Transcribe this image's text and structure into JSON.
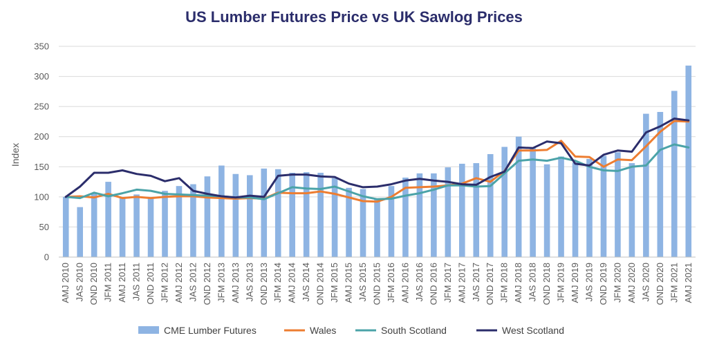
{
  "chart_data": {
    "type": "bar+line",
    "title": "US Lumber Futures Price vs UK Sawlog Prices",
    "xlabel": "",
    "ylabel": "Index",
    "ylim": [
      0,
      350
    ],
    "yticks": [
      0,
      50,
      100,
      150,
      200,
      250,
      300,
      350
    ],
    "grid": true,
    "legend_position": "bottom",
    "categories": [
      "AMJ 2010",
      "JAS 2010",
      "OND 2010",
      "JFM 2011",
      "AMJ 2011",
      "JAS 2011",
      "OND 2011",
      "JFM 2012",
      "AMJ 2012",
      "JAS 2012",
      "OND 2012",
      "JFM 2013",
      "AMJ 2013",
      "JAS 2013",
      "OND 2013",
      "JFM 2014",
      "AMJ 2014",
      "JAS 2014",
      "OND 2014",
      "JFM 2015",
      "AMJ 2015",
      "JAS 2015",
      "OND 2015",
      "JFM 2016",
      "AMJ 2016",
      "JAS 2016",
      "OND 2016",
      "JFM 2017",
      "AMJ 2017",
      "JAS 2017",
      "OND 2017",
      "JFM 2018",
      "AMJ 2018",
      "JAS 2018",
      "OND 2018",
      "JFM 2019",
      "AMJ 2019",
      "JAS 2019",
      "OND 2019",
      "JFM 2020",
      "AMJ 2020",
      "JAS 2020",
      "OND 2020",
      "JFM 2021",
      "AMJ 2021"
    ],
    "tick_labels": [
      "AMJ 2010",
      "JAS 2010",
      "OND 2010",
      "JFM 2011",
      "AMJ 2011",
      "JAS 2011",
      "OND 2011",
      "JFM 2012",
      "AMJ 2012",
      "JAS 2012",
      "OND 2012",
      "JFM 2013",
      "AMJ 2013",
      "JAS 2013",
      "OND 2013",
      "JFM 2014",
      "AMJ 2014",
      "JAS 2014",
      "OND 2014",
      "JFM 2015",
      "AMJ 2015",
      "JAS 2015",
      "OND 2015",
      "JFM 2016",
      "AMJ 2016",
      "JAS 2016",
      "OND 2016",
      "JFM 2017",
      "AMJ 2017",
      "JAS 2017",
      "OND 2017",
      "JFM 2018",
      "AMJ 2018",
      "JAS 2018",
      "OND 2018",
      "JFM 2019",
      "AMJ 2019",
      "JAS 2019",
      "OND 2019",
      "JFM 2020",
      "AMJ 2020",
      "JAS 2020",
      "OND 2020",
      "JFM 2021",
      "AMJ 2021"
    ],
    "series": [
      {
        "name": "CME Lumber Futures",
        "kind": "bar",
        "color": "#8eb4e3",
        "values": [
          100,
          83,
          105,
          125,
          99,
          104,
          98,
          110,
          118,
          121,
          134,
          152,
          138,
          136,
          147,
          146,
          140,
          141,
          140,
          131,
          115,
          113,
          97,
          118,
          132,
          139,
          139,
          149,
          155,
          156,
          171,
          183,
          200,
          181,
          154,
          167,
          157,
          163,
          168,
          174,
          156,
          238,
          241,
          276,
          318
        ]
      },
      {
        "name": "Wales",
        "kind": "line",
        "color": "#ed7d31",
        "values": [
          100,
          101,
          99,
          105,
          98,
          100,
          98,
          100,
          101,
          101,
          99,
          98,
          97,
          98,
          97,
          107,
          106,
          106,
          109,
          105,
          99,
          93,
          92,
          100,
          115,
          116,
          117,
          119,
          122,
          131,
          125,
          143,
          177,
          177,
          178,
          193,
          167,
          166,
          150,
          162,
          161,
          184,
          208,
          226,
          225
        ]
      },
      {
        "name": "South Scotland",
        "kind": "line",
        "color": "#4ba3a8",
        "values": [
          100,
          98,
          107,
          101,
          106,
          112,
          110,
          105,
          104,
          103,
          102,
          101,
          99,
          99,
          96,
          106,
          116,
          114,
          113,
          117,
          109,
          101,
          96,
          97,
          102,
          106,
          112,
          119,
          119,
          117,
          118,
          139,
          160,
          162,
          160,
          165,
          160,
          150,
          144,
          143,
          150,
          152,
          178,
          187,
          182
        ]
      },
      {
        "name": "West Scotland",
        "kind": "line",
        "color": "#2b2d6b",
        "values": [
          100,
          117,
          140,
          140,
          144,
          138,
          135,
          126,
          131,
          110,
          105,
          101,
          99,
          102,
          100,
          135,
          137,
          137,
          134,
          133,
          122,
          116,
          117,
          121,
          127,
          130,
          127,
          125,
          121,
          120,
          133,
          142,
          182,
          181,
          192,
          189,
          155,
          152,
          170,
          177,
          175,
          207,
          217,
          230,
          227
        ]
      }
    ]
  }
}
